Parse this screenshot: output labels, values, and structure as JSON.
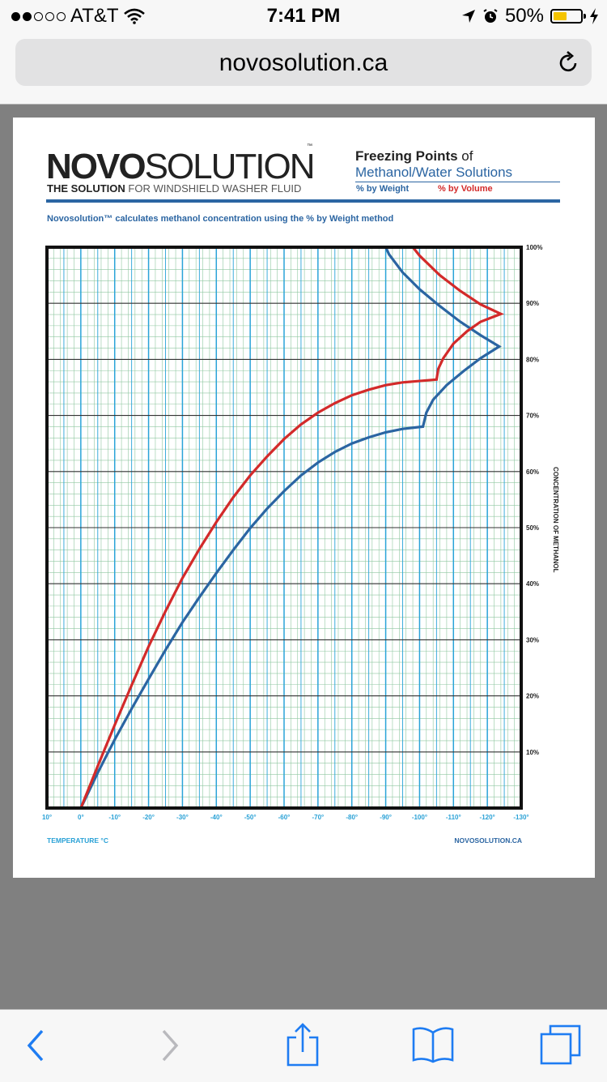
{
  "status_bar": {
    "carrier": "AT&T",
    "time": "7:41 PM",
    "battery_percent": "50%",
    "battery_level": 0.5
  },
  "browser": {
    "url": "novosolution.ca",
    "toolbar": [
      "back",
      "forward",
      "share",
      "bookmarks",
      "tabs"
    ]
  },
  "header": {
    "logo_bold": "NOVO",
    "logo_light": "SOLUTION",
    "logo_tm": "™",
    "tagline_bold": "THE SOLUTION",
    "tagline_rest": " FOR WINDSHIELD WASHER FLUID",
    "title_bold": "Freezing Points",
    "title_rest": " of",
    "title_line2": "Methanol/Water Solutions",
    "legend_weight": "% by Weight",
    "legend_volume": "% by Volume",
    "note": "Novosolution™ calculates methanol concentration using the % by Weight method"
  },
  "footer": {
    "left": "TEMPERATURE °C",
    "right": "NOVOSOLUTION.CA"
  },
  "colors": {
    "weight": "#2b65a2",
    "volume": "#d32a2a",
    "accent": "#2b65a2",
    "label": "#29a1d6",
    "grid_minor": "#8fc7a0",
    "grid_blue": "#2aa3d8"
  },
  "chart_data": {
    "type": "line",
    "title": "Freezing Points of Methanol/Water Solutions",
    "xlabel": "TEMPERATURE °C",
    "ylabel": "CONCENTRATION OF METHANOL",
    "xlim": [
      10,
      -130
    ],
    "ylim": [
      0,
      100
    ],
    "x_ticks": [
      "10°",
      "0°",
      "-10°",
      "-20°",
      "-30°",
      "-40°",
      "-50°",
      "-60°",
      "-70°",
      "-80°",
      "-90°",
      "-100°",
      "-110°",
      "-120°",
      "-130°"
    ],
    "y_ticks": [
      "10%",
      "20%",
      "30%",
      "40%",
      "50%",
      "60%",
      "70%",
      "80%",
      "90%",
      "100%"
    ],
    "legend_position": "top",
    "grid": true,
    "series": [
      {
        "name": "% by Weight",
        "points": [
          [
            0,
            0
          ],
          [
            -5,
            6.3
          ],
          [
            -10,
            12.2
          ],
          [
            -15,
            17.7
          ],
          [
            -20,
            23
          ],
          [
            -25,
            28.2
          ],
          [
            -30,
            33.1
          ],
          [
            -35,
            37.6
          ],
          [
            -40,
            41.9
          ],
          [
            -45,
            46
          ],
          [
            -50,
            49.9
          ],
          [
            -55,
            53.4
          ],
          [
            -60,
            56.5
          ],
          [
            -65,
            59.3
          ],
          [
            -70,
            61.6
          ],
          [
            -75,
            63.5
          ],
          [
            -80,
            65
          ],
          [
            -85,
            66.1
          ],
          [
            -90,
            67
          ],
          [
            -95,
            67.6
          ],
          [
            -101,
            68
          ],
          [
            -102,
            70.5
          ],
          [
            -104,
            72.8
          ],
          [
            -108,
            75.4
          ],
          [
            -113,
            77.9
          ],
          [
            -118,
            80.2
          ],
          [
            -123.5,
            82.3
          ],
          [
            -118,
            84.3
          ],
          [
            -112,
            86.7
          ],
          [
            -106,
            89.5
          ],
          [
            -100,
            92.5
          ],
          [
            -95,
            95.5
          ],
          [
            -91,
            98.7
          ],
          [
            -90,
            100
          ]
        ]
      },
      {
        "name": "% by Volume",
        "points": [
          [
            0,
            0
          ],
          [
            -5,
            7.5
          ],
          [
            -10,
            14.8
          ],
          [
            -15,
            21.9
          ],
          [
            -20,
            28.8
          ],
          [
            -25,
            35.1
          ],
          [
            -30,
            41
          ],
          [
            -35,
            46.2
          ],
          [
            -40,
            51
          ],
          [
            -45,
            55.4
          ],
          [
            -50,
            59.3
          ],
          [
            -55,
            62.7
          ],
          [
            -60,
            65.8
          ],
          [
            -65,
            68.4
          ],
          [
            -70,
            70.5
          ],
          [
            -75,
            72.2
          ],
          [
            -80,
            73.6
          ],
          [
            -85,
            74.6
          ],
          [
            -90,
            75.4
          ],
          [
            -95,
            75.9
          ],
          [
            -105,
            76.4
          ],
          [
            -105.5,
            78.3
          ],
          [
            -107,
            80.2
          ],
          [
            -110,
            82.8
          ],
          [
            -114,
            85
          ],
          [
            -118,
            86.7
          ],
          [
            -124,
            88.1
          ],
          [
            -118,
            89.8
          ],
          [
            -112,
            92.2
          ],
          [
            -106,
            95
          ],
          [
            -100,
            98.5
          ],
          [
            -98,
            100
          ]
        ]
      }
    ]
  }
}
